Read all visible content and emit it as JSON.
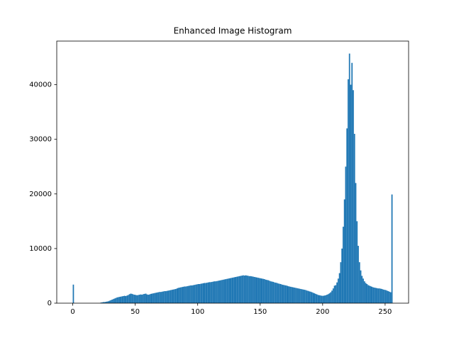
{
  "chart_data": {
    "type": "histogram",
    "title": "Enhanced Image Histogram",
    "color": "#1f77b4",
    "bins": [
      0,
      1,
      2,
      3,
      4,
      5,
      6,
      7,
      8,
      9,
      10,
      11,
      12,
      13,
      14,
      15,
      16,
      17,
      18,
      19,
      20,
      21,
      22,
      23,
      24,
      25,
      26,
      27,
      28,
      29,
      30,
      31,
      32,
      33,
      34,
      35,
      36,
      37,
      38,
      39,
      40,
      41,
      42,
      43,
      44,
      45,
      46,
      47,
      48,
      49,
      50,
      51,
      52,
      53,
      54,
      55,
      56,
      57,
      58,
      59,
      60,
      61,
      62,
      63,
      64,
      65,
      66,
      67,
      68,
      69,
      70,
      71,
      72,
      73,
      74,
      75,
      76,
      77,
      78,
      79,
      80,
      81,
      82,
      83,
      84,
      85,
      86,
      87,
      88,
      89,
      90,
      91,
      92,
      93,
      94,
      95,
      96,
      97,
      98,
      99,
      100,
      101,
      102,
      103,
      104,
      105,
      106,
      107,
      108,
      109,
      110,
      111,
      112,
      113,
      114,
      115,
      116,
      117,
      118,
      119,
      120,
      121,
      122,
      123,
      124,
      125,
      126,
      127,
      128,
      129,
      130,
      131,
      132,
      133,
      134,
      135,
      136,
      137,
      138,
      139,
      140,
      141,
      142,
      143,
      144,
      145,
      146,
      147,
      148,
      149,
      150,
      151,
      152,
      153,
      154,
      155,
      156,
      157,
      158,
      159,
      160,
      161,
      162,
      163,
      164,
      165,
      166,
      167,
      168,
      169,
      170,
      171,
      172,
      173,
      174,
      175,
      176,
      177,
      178,
      179,
      180,
      181,
      182,
      183,
      184,
      185,
      186,
      187,
      188,
      189,
      190,
      191,
      192,
      193,
      194,
      195,
      196,
      197,
      198,
      199,
      200,
      201,
      202,
      203,
      204,
      205,
      206,
      207,
      208,
      209,
      210,
      211,
      212,
      213,
      214,
      215,
      216,
      217,
      218,
      219,
      220,
      221,
      222,
      223,
      224,
      225,
      226,
      227,
      228,
      229,
      230,
      231,
      232,
      233,
      234,
      235,
      236,
      237,
      238,
      239,
      240,
      241,
      242,
      243,
      244,
      245,
      246,
      247,
      248,
      249,
      250,
      251,
      252,
      253,
      254,
      255,
      256
    ],
    "values": [
      3400,
      0,
      0,
      0,
      0,
      0,
      0,
      0,
      0,
      0,
      0,
      0,
      0,
      0,
      0,
      0,
      0,
      0,
      0,
      0,
      0,
      0,
      100,
      150,
      200,
      200,
      250,
      300,
      350,
      450,
      550,
      650,
      750,
      850,
      950,
      1050,
      1100,
      1150,
      1200,
      1250,
      1300,
      1350,
      1300,
      1400,
      1500,
      1650,
      1750,
      1700,
      1600,
      1550,
      1500,
      1450,
      1500,
      1550,
      1600,
      1550,
      1650,
      1700,
      1750,
      1600,
      1550,
      1600,
      1700,
      1750,
      1800,
      1850,
      1900,
      1950,
      2000,
      2050,
      2050,
      2100,
      2150,
      2200,
      2200,
      2250,
      2300,
      2350,
      2400,
      2450,
      2500,
      2550,
      2600,
      2700,
      2800,
      2850,
      2900,
      2950,
      3000,
      3050,
      3050,
      3100,
      3150,
      3200,
      3250,
      3250,
      3300,
      3350,
      3400,
      3450,
      3500,
      3500,
      3550,
      3600,
      3650,
      3700,
      3700,
      3750,
      3800,
      3850,
      3850,
      3900,
      3950,
      4000,
      4000,
      4050,
      4100,
      4150,
      4200,
      4250,
      4300,
      4350,
      4400,
      4450,
      4500,
      4550,
      4600,
      4650,
      4700,
      4750,
      4800,
      4850,
      4900,
      4950,
      5000,
      5050,
      5100,
      5050,
      5100,
      5050,
      5000,
      4950,
      4950,
      4900,
      4850,
      4800,
      4750,
      4700,
      4650,
      4600,
      4550,
      4500,
      4450,
      4400,
      4300,
      4250,
      4200,
      4100,
      4000,
      3950,
      3900,
      3800,
      3750,
      3700,
      3600,
      3550,
      3500,
      3400,
      3350,
      3300,
      3250,
      3200,
      3100,
      3050,
      3000,
      2950,
      2900,
      2850,
      2800,
      2750,
      2700,
      2650,
      2600,
      2550,
      2500,
      2450,
      2400,
      2300,
      2250,
      2150,
      2100,
      2000,
      1900,
      1800,
      1700,
      1600,
      1500,
      1450,
      1400,
      1350,
      1350,
      1400,
      1450,
      1550,
      1650,
      1800,
      2000,
      2300,
      2700,
      3200,
      3300,
      3800,
      4500,
      5500,
      7500,
      10000,
      14000,
      19000,
      25000,
      32000,
      41000,
      45700,
      40000,
      44000,
      39000,
      31000,
      22000,
      15000,
      10500,
      7500,
      6000,
      5000,
      4500,
      4000,
      3700,
      3500,
      3300,
      3200,
      3100,
      3000,
      2900,
      2850,
      2800,
      2750,
      2700,
      2700,
      2650,
      2600,
      2500,
      2450,
      2400,
      2300,
      2200,
      2100,
      2000,
      19900
    ],
    "xlim": [
      -12.8,
      268.8
    ],
    "xticks": [
      0,
      50,
      100,
      150,
      200,
      250
    ],
    "ylim": [
      0,
      47985
    ],
    "yticks": [
      0,
      10000,
      20000,
      30000,
      40000
    ]
  }
}
